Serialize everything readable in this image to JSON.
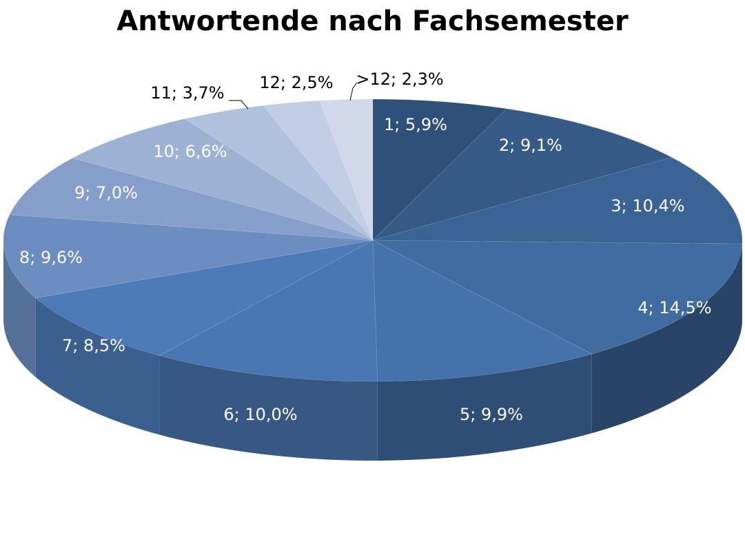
{
  "chart_data": {
    "type": "pie",
    "title": "Antwortende nach Fachsemester",
    "style": "3d-exploded-none",
    "slices": [
      {
        "category": "1",
        "value": 5.9,
        "label": "1; 5,9%",
        "color": "#2f5079",
        "label_color": "#ffffff"
      },
      {
        "category": "2",
        "value": 9.1,
        "label": "2; 9,1%",
        "color": "#365b87",
        "label_color": "#ffffff"
      },
      {
        "category": "3",
        "value": 10.4,
        "label": "3; 10,4%",
        "color": "#3b6394",
        "label_color": "#ffffff"
      },
      {
        "category": "4",
        "value": 14.5,
        "label": "4; 14,5%",
        "color": "#416ca2",
        "label_color": "#ffffff"
      },
      {
        "category": "5",
        "value": 9.9,
        "label": "5; 9,9%",
        "color": "#4572ab",
        "label_color": "#ffffff"
      },
      {
        "category": "6",
        "value": 10.0,
        "label": "6; 10,0%",
        "color": "#4977b1",
        "label_color": "#ffffff"
      },
      {
        "category": "7",
        "value": 8.5,
        "label": "7; 8,5%",
        "color": "#4c7bb7",
        "label_color": "#ffffff"
      },
      {
        "category": "8",
        "value": 9.6,
        "label": "8; 9,6%",
        "color": "#6b8dc0",
        "label_color": "#ffffff"
      },
      {
        "category": "9",
        "value": 7.0,
        "label": "9; 7,0%",
        "color": "#859fca",
        "label_color": "#ffffff"
      },
      {
        "category": "10",
        "value": 6.6,
        "label": "10; 6,6%",
        "color": "#9cb1d4",
        "label_color": "#ffffff"
      },
      {
        "category": "11",
        "value": 3.7,
        "label": "11; 3,7%",
        "color": "#b0c1dd",
        "label_color": "#000000"
      },
      {
        "category": "12",
        "value": 2.5,
        "label": "12; 2,5%",
        "color": "#c1cde4",
        "label_color": "#000000"
      },
      {
        "category": ">12",
        "value": 2.3,
        "label": ">12; 2,3%",
        "color": "#d1d8ea",
        "label_color": "#000000"
      }
    ]
  }
}
